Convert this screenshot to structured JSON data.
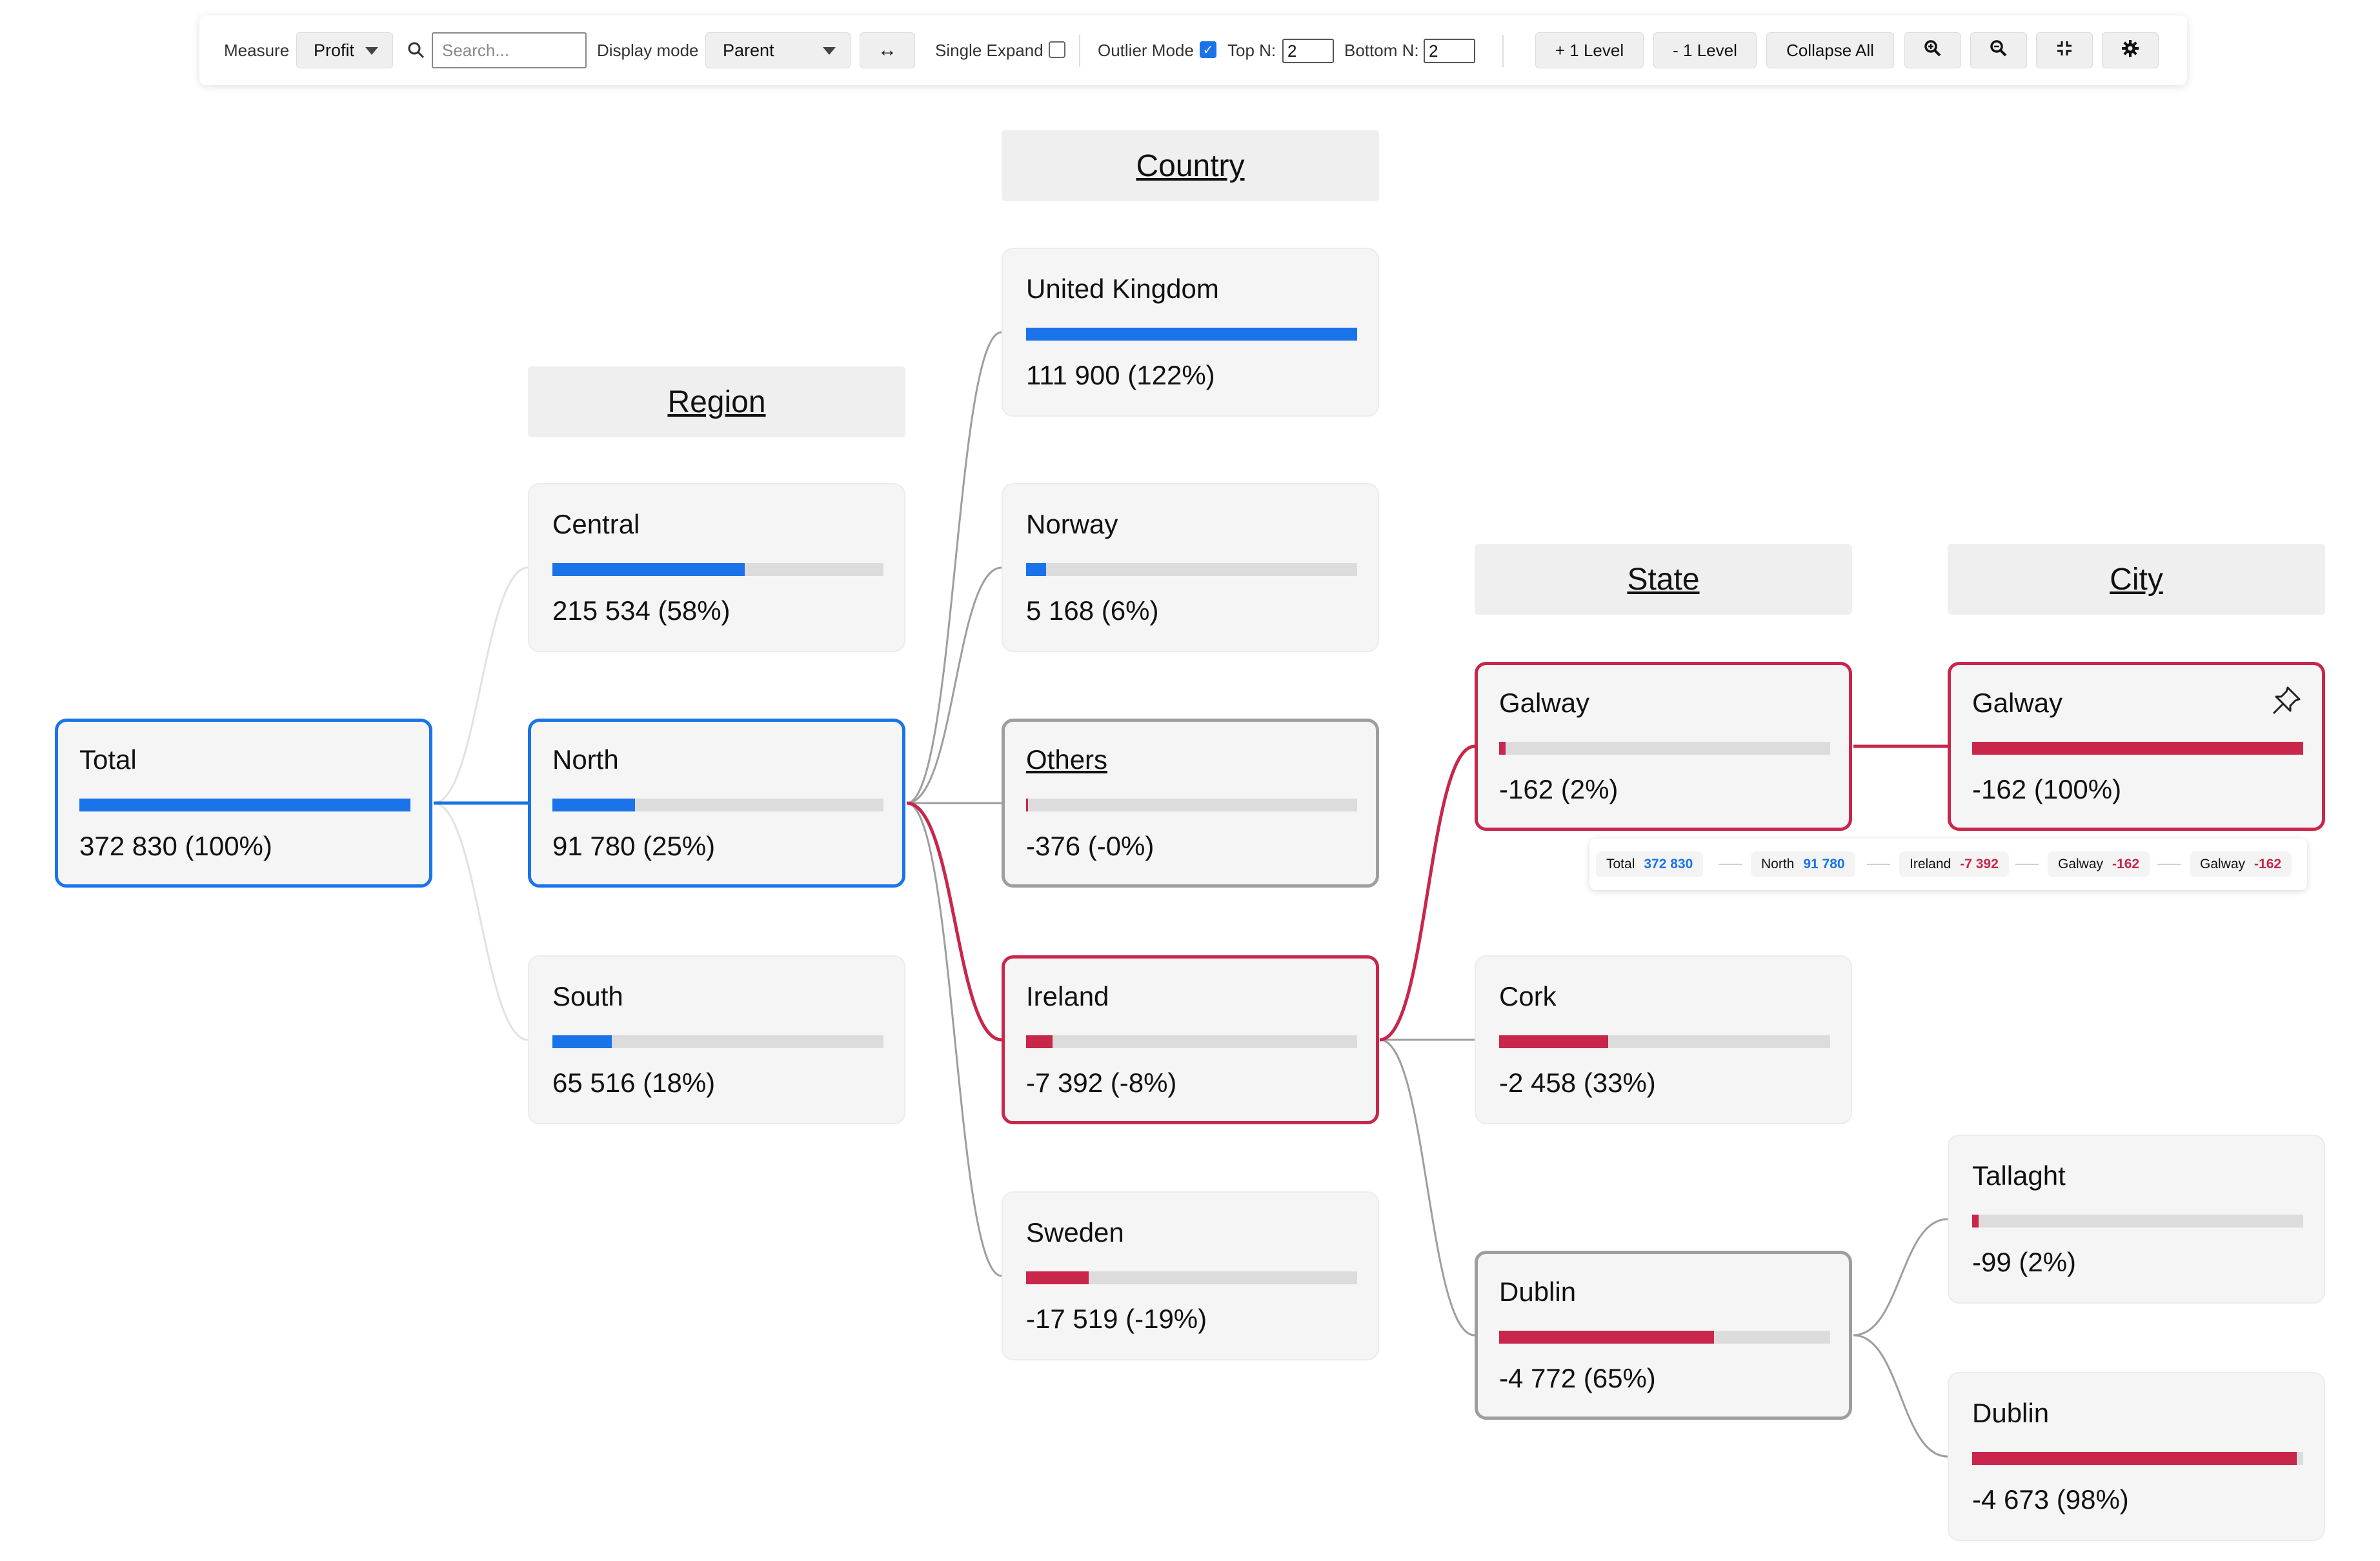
{
  "toolbar": {
    "measure_label": "Measure",
    "measure_value": "Profit",
    "search_placeholder": "Search...",
    "display_mode_label": "Display mode",
    "display_mode_value": "Parent",
    "swap_label": "↔",
    "single_expand_label": "Single Expand",
    "single_expand_checked": false,
    "outlier_mode_label": "Outlier Mode",
    "outlier_mode_checked": true,
    "top_n_label": "Top N:",
    "top_n_value": "2",
    "bottom_n_label": "Bottom N:",
    "bottom_n_value": "2",
    "plus_level_label": "+ 1 Level",
    "minus_level_label": "- 1 Level",
    "collapse_all_label": "Collapse All",
    "icons": [
      "zoom-in-icon",
      "zoom-out-icon",
      "fit-screen-icon",
      "settings-gear-icon"
    ]
  },
  "columns": {
    "region": "Region",
    "country": "Country",
    "state": "State",
    "city": "City"
  },
  "colors": {
    "positive": "#1a73e8",
    "negative": "#c8264a",
    "selected_blue": "#1a73e8",
    "selected_red": "#c8264a",
    "others_border": "#9e9e9e"
  },
  "nodes": {
    "total": {
      "label": "Total",
      "value": "372 830 (100%)",
      "bar": 1.0,
      "color": "positive"
    },
    "central": {
      "label": "Central",
      "value": "215 534 (58%)",
      "bar": 0.58,
      "color": "positive"
    },
    "north": {
      "label": "North",
      "value": "91 780 (25%)",
      "bar": 0.25,
      "color": "positive"
    },
    "south": {
      "label": "South",
      "value": "65 516 (18%)",
      "bar": 0.18,
      "color": "positive"
    },
    "united_kingdom": {
      "label": "United Kingdom",
      "value": "111 900 (122%)",
      "bar": 1.0,
      "color": "positive"
    },
    "norway": {
      "label": "Norway",
      "value": "5 168 (6%)",
      "bar": 0.06,
      "color": "positive"
    },
    "others": {
      "label": "Others",
      "value": "-376 (-0%)",
      "bar": 0.005,
      "color": "negative"
    },
    "ireland": {
      "label": "Ireland",
      "value": "-7 392 (-8%)",
      "bar": 0.08,
      "color": "negative"
    },
    "sweden": {
      "label": "Sweden",
      "value": "-17 519 (-19%)",
      "bar": 0.19,
      "color": "negative"
    },
    "state_galway": {
      "label": "Galway",
      "value": "-162 (2%)",
      "bar": 0.02,
      "color": "negative"
    },
    "cork": {
      "label": "Cork",
      "value": "-2 458 (33%)",
      "bar": 0.33,
      "color": "negative"
    },
    "state_dublin": {
      "label": "Dublin",
      "value": "-4 772 (65%)",
      "bar": 0.65,
      "color": "negative"
    },
    "city_galway": {
      "label": "Galway",
      "value": "-162 (100%)",
      "bar": 1.0,
      "color": "negative"
    },
    "tallaght": {
      "label": "Tallaght",
      "value": "-99 (2%)",
      "bar": 0.02,
      "color": "negative"
    },
    "city_dublin": {
      "label": "Dublin",
      "value": "-4 673 (98%)",
      "bar": 0.98,
      "color": "negative"
    }
  },
  "path": [
    {
      "label": "Total",
      "value": "372 830",
      "color": "positive"
    },
    {
      "label": "North",
      "value": "91 780",
      "color": "positive"
    },
    {
      "label": "Ireland",
      "value": "-7 392",
      "color": "negative"
    },
    {
      "label": "Galway",
      "value": "-162",
      "color": "negative"
    },
    {
      "label": "Galway",
      "value": "-162",
      "color": "negative"
    }
  ]
}
